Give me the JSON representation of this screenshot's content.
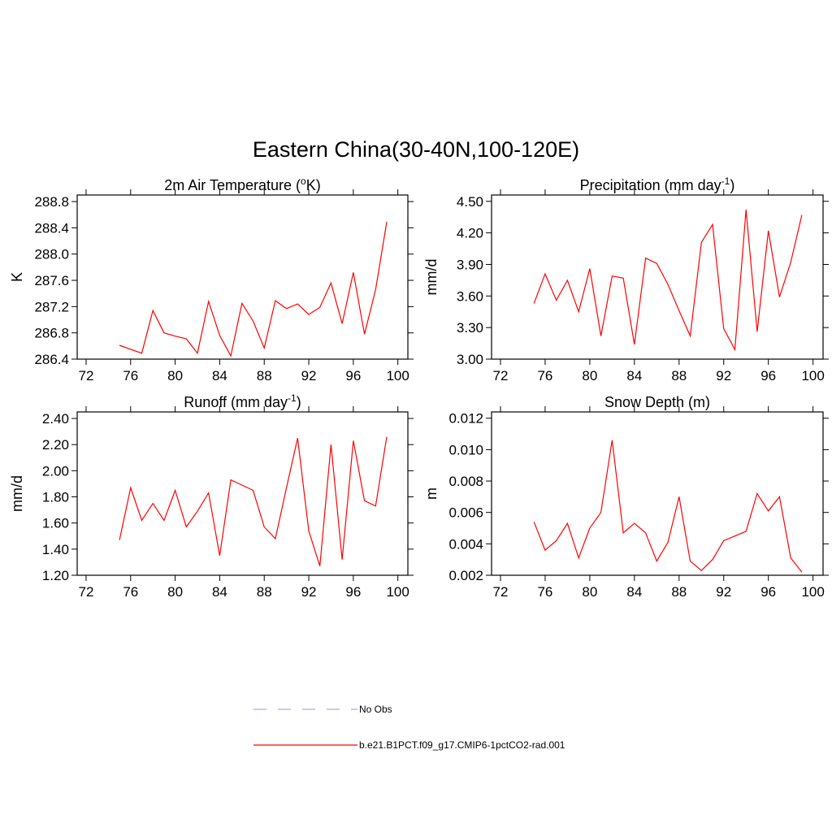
{
  "title": "Eastern China(30-40N,100-120E)",
  "chart_data": [
    {
      "type": "line",
      "title": [
        "2m Air Temperature (",
        "o",
        "K)"
      ],
      "ylabel": "K",
      "color": "#ff0000",
      "x": [
        75,
        76,
        77,
        78,
        79,
        80,
        81,
        82,
        83,
        84,
        85,
        86,
        87,
        88,
        89,
        90,
        91,
        92,
        93,
        94,
        95,
        96,
        97,
        98,
        99
      ],
      "values": [
        286.61,
        286.55,
        286.49,
        287.14,
        286.8,
        286.75,
        286.71,
        286.49,
        287.28,
        286.76,
        286.45,
        287.25,
        286.98,
        286.57,
        287.29,
        287.17,
        287.24,
        287.08,
        287.19,
        287.56,
        286.94,
        287.72,
        286.78,
        287.46,
        288.49
      ],
      "xlim": [
        71.2,
        100.9
      ],
      "xticks": [
        72,
        76,
        80,
        84,
        88,
        92,
        96,
        100
      ],
      "ylim": [
        286.4,
        288.9
      ],
      "yticks": [
        286.4,
        286.8,
        287.2,
        287.6,
        {
          "value": 288.0,
          "label": "288.0"
        },
        288.4,
        288.8
      ]
    },
    {
      "type": "line",
      "title": [
        "Precipitation (mm day",
        "-1",
        ")"
      ],
      "ylabel": "mm/d",
      "color": "#ff0000",
      "x": [
        75,
        76,
        77,
        78,
        79,
        80,
        81,
        82,
        83,
        84,
        85,
        86,
        87,
        88,
        89,
        90,
        91,
        92,
        93,
        94,
        95,
        96,
        97,
        98,
        99
      ],
      "values": [
        3.53,
        3.81,
        3.56,
        3.75,
        3.45,
        3.86,
        3.22,
        3.79,
        3.77,
        3.14,
        3.96,
        3.91,
        3.71,
        3.46,
        3.22,
        4.11,
        4.28,
        3.29,
        3.09,
        4.42,
        3.26,
        4.22,
        3.59,
        3.92,
        4.37
      ],
      "xlim": [
        71.2,
        100.9
      ],
      "xticks": [
        72,
        76,
        80,
        84,
        88,
        92,
        96,
        100
      ],
      "ylim": [
        3.0,
        4.56
      ],
      "yticks": [
        {
          "value": 3.0,
          "label": "3.00"
        },
        {
          "value": 3.3,
          "label": "3.30"
        },
        {
          "value": 3.6,
          "label": "3.60"
        },
        {
          "value": 3.9,
          "label": "3.90"
        },
        {
          "value": 4.2,
          "label": "4.20"
        },
        {
          "value": 4.5,
          "label": "4.50"
        }
      ]
    },
    {
      "type": "line",
      "title": [
        "Runoff (mm day",
        "-1",
        ")"
      ],
      "ylabel": "mm/d",
      "color": "#ff0000",
      "x": [
        75,
        76,
        77,
        78,
        79,
        80,
        81,
        82,
        83,
        84,
        85,
        86,
        87,
        88,
        89,
        90,
        91,
        92,
        93,
        94,
        95,
        96,
        97,
        98,
        99
      ],
      "values": [
        1.47,
        1.87,
        1.62,
        1.75,
        1.62,
        1.85,
        1.57,
        1.69,
        1.83,
        1.35,
        1.93,
        1.89,
        1.85,
        1.57,
        1.48,
        1.87,
        2.25,
        1.54,
        1.27,
        2.2,
        1.32,
        2.23,
        1.77,
        1.73,
        2.26
      ],
      "xlim": [
        71.2,
        100.9
      ],
      "xticks": [
        72,
        76,
        80,
        84,
        88,
        92,
        96,
        100
      ],
      "ylim": [
        1.2,
        2.45
      ],
      "yticks": [
        {
          "value": 1.2,
          "label": "1.20"
        },
        {
          "value": 1.4,
          "label": "1.40"
        },
        {
          "value": 1.6,
          "label": "1.60"
        },
        {
          "value": 1.8,
          "label": "1.80"
        },
        {
          "value": 2.0,
          "label": "2.00"
        },
        {
          "value": 2.2,
          "label": "2.20"
        },
        {
          "value": 2.4,
          "label": "2.40"
        }
      ]
    },
    {
      "type": "line",
      "title": [
        "Snow Depth (m)"
      ],
      "ylabel": "m",
      "color": "#ff0000",
      "x": [
        75,
        76,
        77,
        78,
        79,
        80,
        81,
        82,
        83,
        84,
        85,
        86,
        87,
        88,
        89,
        90,
        91,
        92,
        93,
        94,
        95,
        96,
        97,
        98,
        99
      ],
      "values": [
        0.0054,
        0.0036,
        0.0042,
        0.0053,
        0.0031,
        0.005,
        0.006,
        0.0106,
        0.0047,
        0.0053,
        0.0047,
        0.0029,
        0.0041,
        0.007,
        0.0029,
        0.0023,
        0.003,
        0.0042,
        0.0045,
        0.0048,
        0.0072,
        0.0061,
        0.007,
        0.0031,
        0.0022
      ],
      "xlim": [
        71.2,
        100.9
      ],
      "xticks": [
        72,
        76,
        80,
        84,
        88,
        92,
        96,
        100
      ],
      "ylim": [
        0.002,
        0.0124
      ],
      "yticks": [
        0.002,
        0.004,
        0.006,
        0.008,
        {
          "value": 0.01,
          "label": "0.010"
        },
        0.012
      ]
    }
  ],
  "legend": [
    {
      "name": "No Obs",
      "color": "#a8a8ff",
      "dashed": true
    },
    {
      "name": "b.e21.B1PCT.f09_g17.CMIP6-1pctCO2-rad.001",
      "color": "#ff0000",
      "dashed": false
    }
  ]
}
